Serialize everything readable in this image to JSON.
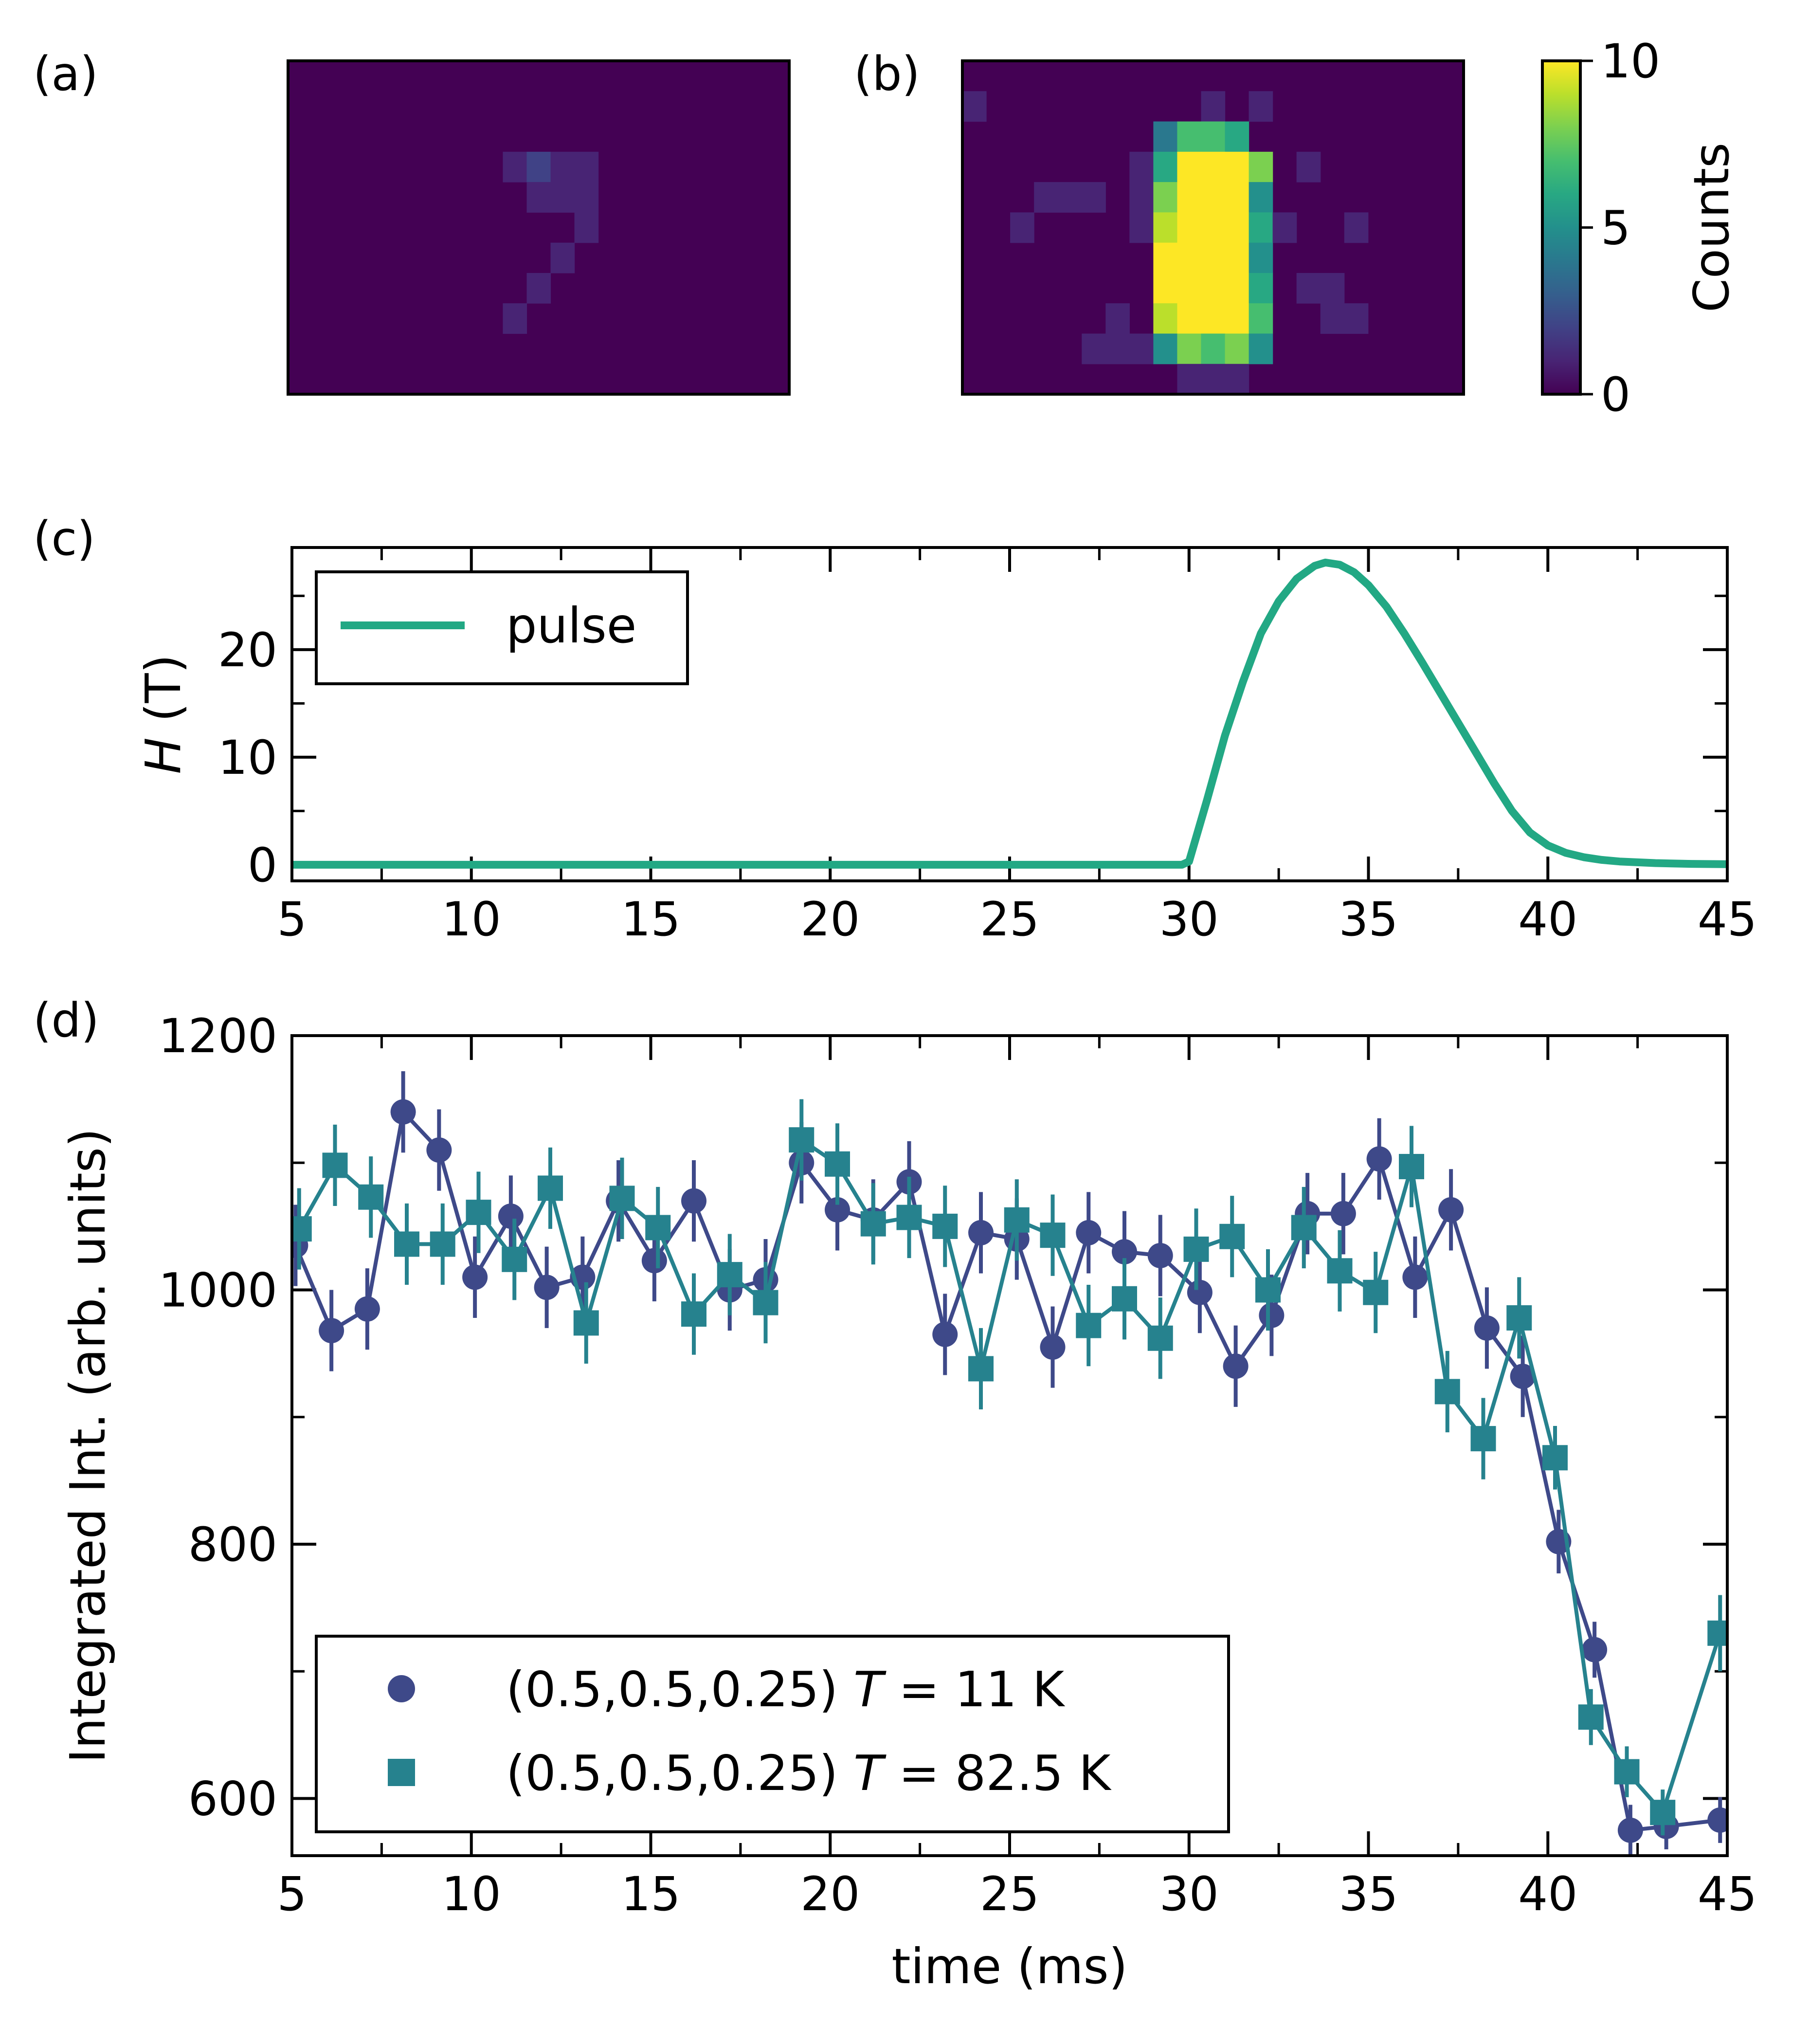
{
  "chart_data": [
    {
      "panel": "(a)",
      "type": "heatmap",
      "rows": 11,
      "cols": 21,
      "cells": [
        [
          9,
          3,
          1
        ],
        [
          10,
          3,
          2
        ],
        [
          11,
          3,
          1
        ],
        [
          12,
          3,
          1
        ],
        [
          10,
          4,
          1
        ],
        [
          11,
          4,
          1
        ],
        [
          12,
          4,
          1
        ],
        [
          12,
          5,
          1
        ],
        [
          11,
          6,
          1
        ],
        [
          10,
          7,
          1
        ],
        [
          9,
          8,
          1
        ]
      ],
      "background_value": 0
    },
    {
      "panel": "(b)",
      "type": "heatmap",
      "rows": 11,
      "cols": 21,
      "background_value": 0,
      "cells": [
        [
          0,
          1,
          1
        ],
        [
          10,
          1,
          1
        ],
        [
          12,
          1,
          1
        ],
        [
          8,
          2,
          4
        ],
        [
          9,
          2,
          7
        ],
        [
          10,
          2,
          7
        ],
        [
          11,
          2,
          6
        ],
        [
          7,
          3,
          1
        ],
        [
          8,
          3,
          6
        ],
        [
          9,
          3,
          10
        ],
        [
          10,
          3,
          10
        ],
        [
          11,
          3,
          10
        ],
        [
          12,
          3,
          8
        ],
        [
          14,
          3,
          1
        ],
        [
          3,
          4,
          1
        ],
        [
          4,
          4,
          1
        ],
        [
          5,
          4,
          1
        ],
        [
          7,
          4,
          1
        ],
        [
          8,
          4,
          8
        ],
        [
          9,
          4,
          10
        ],
        [
          10,
          4,
          10
        ],
        [
          11,
          4,
          10
        ],
        [
          12,
          4,
          5
        ],
        [
          2,
          5,
          1
        ],
        [
          7,
          5,
          1
        ],
        [
          8,
          5,
          9
        ],
        [
          9,
          5,
          10
        ],
        [
          10,
          5,
          10
        ],
        [
          11,
          5,
          10
        ],
        [
          12,
          5,
          6
        ],
        [
          13,
          5,
          1
        ],
        [
          16,
          5,
          1
        ],
        [
          8,
          6,
          10
        ],
        [
          9,
          6,
          10
        ],
        [
          10,
          6,
          10
        ],
        [
          11,
          6,
          10
        ],
        [
          12,
          6,
          5
        ],
        [
          8,
          7,
          10
        ],
        [
          9,
          7,
          10
        ],
        [
          10,
          7,
          10
        ],
        [
          11,
          7,
          10
        ],
        [
          12,
          7,
          6
        ],
        [
          14,
          7,
          1
        ],
        [
          15,
          7,
          1
        ],
        [
          6,
          8,
          1
        ],
        [
          8,
          8,
          9
        ],
        [
          9,
          8,
          10
        ],
        [
          10,
          8,
          10
        ],
        [
          11,
          8,
          10
        ],
        [
          12,
          8,
          7
        ],
        [
          15,
          8,
          1
        ],
        [
          16,
          8,
          1
        ],
        [
          5,
          9,
          1
        ],
        [
          6,
          9,
          1
        ],
        [
          7,
          9,
          1
        ],
        [
          8,
          9,
          5
        ],
        [
          9,
          9,
          8
        ],
        [
          10,
          9,
          7
        ],
        [
          11,
          9,
          8
        ],
        [
          12,
          9,
          5
        ],
        [
          9,
          10,
          1
        ],
        [
          10,
          10,
          1
        ],
        [
          11,
          10,
          1
        ]
      ]
    },
    {
      "type": "colorbar",
      "label": "Counts",
      "range": [
        0,
        10
      ],
      "ticks": [
        0,
        5,
        10
      ],
      "colormap": "viridis"
    },
    {
      "panel": "(c)",
      "type": "line",
      "xlim": [
        5,
        45
      ],
      "ylim": [
        -1.5,
        29.5
      ],
      "xticks": [
        5,
        10,
        15,
        20,
        25,
        30,
        35,
        40,
        45
      ],
      "yticks": [
        0,
        10,
        20
      ],
      "xlabel": "",
      "ylabel_italic": "H",
      "ylabel_rest": " (T)",
      "legend": "top-left",
      "series": [
        {
          "name": "pulse",
          "color": "#22a884",
          "x": [
            5,
            29.8,
            30,
            30.5,
            31,
            31.5,
            32,
            32.5,
            33,
            33.5,
            33.8,
            34.2,
            34.6,
            35,
            35.5,
            36,
            36.5,
            37,
            37.5,
            38,
            38.5,
            39,
            39.5,
            40,
            40.5,
            41,
            41.5,
            42,
            43,
            44,
            45
          ],
          "y": [
            0,
            0,
            0.3,
            6,
            12,
            17,
            21.5,
            24.5,
            26.6,
            27.8,
            28.1,
            27.9,
            27.2,
            26,
            24,
            21.5,
            18.8,
            16,
            13.2,
            10.4,
            7.6,
            5,
            3,
            1.8,
            1.1,
            0.7,
            0.45,
            0.3,
            0.15,
            0.08,
            0.05
          ]
        }
      ]
    },
    {
      "panel": "(d)",
      "type": "line",
      "xlim": [
        5,
        45
      ],
      "ylim": [
        555,
        1200
      ],
      "xticks": [
        5,
        10,
        15,
        20,
        25,
        30,
        35,
        40,
        45
      ],
      "yticks": [
        600,
        800,
        1000,
        1200
      ],
      "xlabel": "time (ms)",
      "ylabel": "Integrated Int. (arb. units)",
      "legend": "bottom-left",
      "series": [
        {
          "name": "(0.5,0.5,0.25) T = 11 K",
          "label_prefix": "(0.5,0.5,0.25) ",
          "label_var": "T",
          "label_value": " = 11 K",
          "marker": "circle",
          "color": "#3e4989",
          "x": [
            5.1,
            6.1,
            7.1,
            8.1,
            9.1,
            10.1,
            11.1,
            12.1,
            13.1,
            14.1,
            15.1,
            16.2,
            17.2,
            18.2,
            19.2,
            20.2,
            21.2,
            22.2,
            23.2,
            24.2,
            25.2,
            26.2,
            27.2,
            28.2,
            29.2,
            30.3,
            31.3,
            32.3,
            33.3,
            34.3,
            35.3,
            36.3,
            37.3,
            38.3,
            39.3,
            40.3,
            41.3,
            42.3,
            43.3,
            44.8
          ],
          "y": [
            1035,
            968,
            985,
            1140,
            1110,
            1010,
            1058,
            1002,
            1010,
            1070,
            1023,
            1070,
            1000,
            1008,
            1100,
            1063,
            1055,
            1085,
            965,
            1045,
            1040,
            955,
            1045,
            1030,
            1027,
            998,
            940,
            980,
            1060,
            1060,
            1103,
            1010,
            1063,
            970,
            932,
            802,
            717,
            575,
            578,
            583
          ],
          "errors": [
            32,
            32,
            32,
            32,
            32,
            32,
            32,
            32,
            32,
            32,
            32,
            32,
            32,
            32,
            32,
            32,
            32,
            32,
            32,
            32,
            32,
            32,
            32,
            32,
            32,
            32,
            32,
            32,
            32,
            32,
            32,
            32,
            32,
            32,
            32,
            25,
            22,
            20,
            18,
            18
          ]
        },
        {
          "name": "(0.5,0.5,0.25) T = 82.5 K",
          "label_prefix": "(0.5,0.5,0.25) ",
          "label_var": "T",
          "label_value": " = 82.5 K",
          "marker": "square",
          "color": "#26828e",
          "x": [
            5.2,
            6.2,
            7.2,
            8.2,
            9.2,
            10.2,
            11.2,
            12.2,
            13.2,
            14.2,
            15.2,
            16.2,
            17.2,
            18.2,
            19.2,
            20.2,
            21.2,
            22.2,
            23.2,
            24.2,
            25.2,
            26.2,
            27.2,
            28.2,
            29.2,
            30.2,
            31.2,
            32.2,
            33.2,
            34.2,
            35.2,
            36.2,
            37.2,
            38.2,
            39.2,
            40.2,
            41.2,
            42.2,
            43.2,
            44.8
          ],
          "y": [
            1048,
            1098,
            1073,
            1036,
            1036,
            1061,
            1024,
            1080,
            974,
            1072,
            1049,
            981,
            1012,
            990,
            1118,
            1099,
            1052,
            1057,
            1050,
            938,
            1055,
            1043,
            972,
            993,
            962,
            1032,
            1042,
            1000,
            1049,
            1015,
            998,
            1097,
            920,
            883,
            978,
            868,
            664,
            621,
            589,
            730
          ],
          "errors": [
            32,
            32,
            32,
            32,
            32,
            32,
            32,
            32,
            32,
            32,
            32,
            32,
            32,
            32,
            32,
            32,
            32,
            32,
            32,
            32,
            32,
            32,
            32,
            32,
            32,
            32,
            32,
            32,
            32,
            32,
            32,
            32,
            32,
            32,
            32,
            25,
            22,
            20,
            18,
            30
          ]
        }
      ]
    }
  ]
}
